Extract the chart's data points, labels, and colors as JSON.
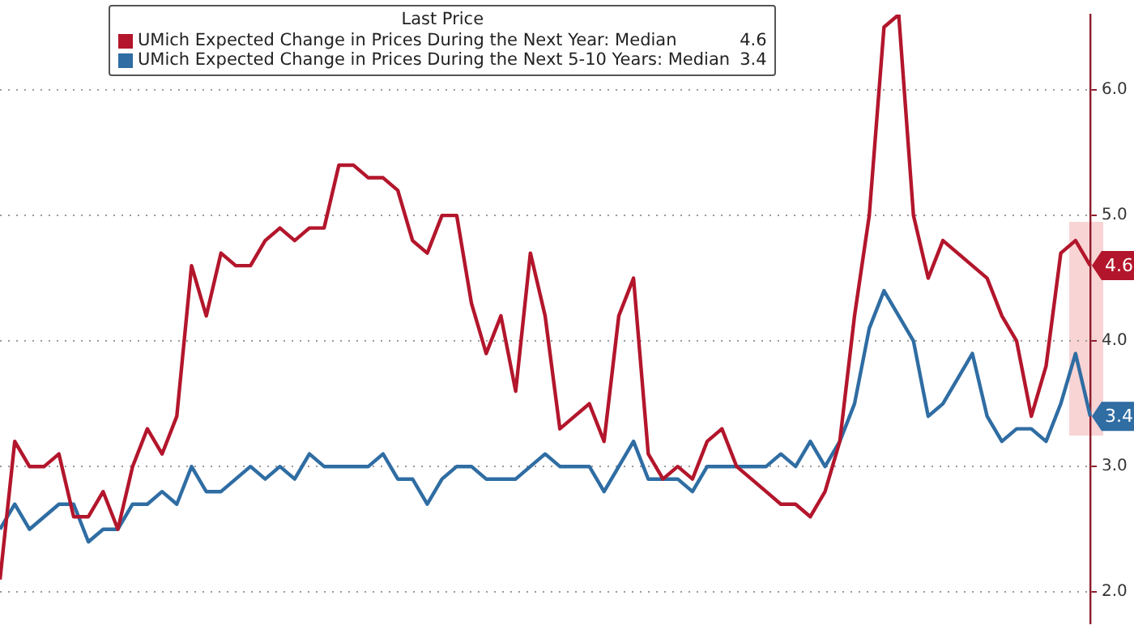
{
  "chart_data": {
    "type": "line",
    "legend_title": "Last Price",
    "categories": [
      null,
      null,
      null,
      null,
      null,
      null,
      null,
      null,
      null,
      null,
      null,
      null,
      null,
      null,
      null,
      null,
      null,
      null,
      null,
      null,
      null,
      null,
      null,
      null,
      null,
      null,
      null,
      null,
      null,
      null,
      null,
      null,
      null,
      null,
      null,
      null,
      null,
      null,
      null,
      null,
      null,
      null,
      null,
      null,
      null,
      null,
      null,
      null,
      null,
      null,
      null,
      null,
      null,
      null,
      null,
      null,
      null,
      null,
      null,
      null,
      null,
      null,
      null,
      null,
      null,
      null,
      null,
      null,
      null,
      null,
      null,
      null,
      null,
      null,
      null
    ],
    "series": [
      {
        "name": "UMich Expected Change in Prices During the Next Year: Median",
        "color": "#b3162c",
        "values": [
          2.1,
          3.2,
          3.0,
          3.0,
          3.1,
          2.6,
          2.6,
          2.8,
          2.5,
          3.0,
          3.3,
          3.1,
          3.4,
          4.6,
          4.2,
          4.7,
          4.6,
          4.6,
          4.8,
          4.9,
          4.8,
          4.9,
          4.9,
          5.4,
          5.4,
          5.3,
          5.3,
          5.2,
          4.8,
          4.7,
          5.0,
          5.0,
          4.3,
          3.9,
          4.2,
          3.6,
          4.7,
          4.2,
          3.3,
          3.4,
          3.5,
          3.2,
          4.2,
          4.5,
          3.1,
          2.9,
          3.0,
          2.9,
          3.2,
          3.3,
          3.0,
          2.9,
          2.8,
          2.7,
          2.7,
          2.6,
          2.8,
          3.2,
          4.2,
          5.0,
          6.5,
          6.6,
          5.0,
          4.5,
          4.8,
          4.7,
          4.6,
          4.5,
          4.2,
          4.0,
          3.4,
          3.8,
          4.7,
          4.8,
          4.6
        ]
      },
      {
        "name": "UMich Expected Change in Prices During the Next 5-10 Years: Median",
        "color": "#2f6da3",
        "values": [
          2.5,
          2.7,
          2.5,
          2.6,
          2.7,
          2.7,
          2.4,
          2.5,
          2.5,
          2.7,
          2.7,
          2.8,
          2.7,
          3.0,
          2.8,
          2.8,
          2.9,
          3.0,
          2.9,
          3.0,
          2.9,
          3.1,
          3.0,
          3.0,
          3.0,
          3.0,
          3.1,
          2.9,
          2.9,
          2.7,
          2.9,
          3.0,
          3.0,
          2.9,
          2.9,
          2.9,
          3.0,
          3.1,
          3.0,
          3.0,
          3.0,
          2.8,
          3.0,
          3.2,
          2.9,
          2.9,
          2.9,
          2.8,
          3.0,
          3.0,
          3.0,
          3.0,
          3.0,
          3.1,
          3.0,
          3.2,
          3.0,
          3.2,
          3.5,
          4.1,
          4.4,
          4.2,
          4.0,
          3.4,
          3.5,
          3.7,
          3.9,
          3.4,
          3.2,
          3.3,
          3.3,
          3.2,
          3.5,
          3.9,
          3.4
        ]
      }
    ],
    "ylim": [
      1.75,
      6.6
    ],
    "yticks": [
      {
        "value": 2,
        "label": "2.0"
      },
      {
        "value": 3,
        "label": "3.0"
      },
      {
        "value": 4,
        "label": "4.0"
      },
      {
        "value": 5,
        "label": "5.0"
      },
      {
        "value": 6,
        "label": "6.0"
      }
    ],
    "tick_labels": "y",
    "grid": "y",
    "legend": "top",
    "line_style": "solid",
    "annotations": [
      "4.6",
      "3.4"
    ]
  }
}
